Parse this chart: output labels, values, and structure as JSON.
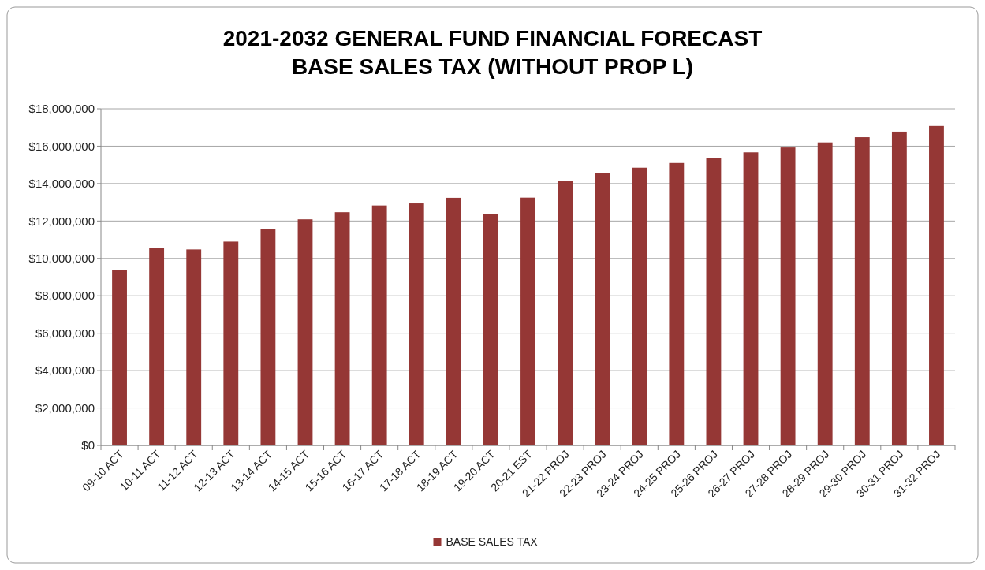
{
  "chart_data": {
    "type": "bar",
    "title": "2021-2032 GENERAL FUND FINANCIAL FORECAST\nBASE SALES TAX (WITHOUT PROP L)",
    "categories": [
      "09-10 ACT",
      "10-11 ACT",
      "11-12 ACT",
      "12-13 ACT",
      "13-14 ACT",
      "14-15 ACT",
      "15-16 ACT",
      "16-17 ACT",
      "17-18 ACT",
      "18-19 ACT",
      "19-20 ACT",
      "20-21 EST",
      "21-22 PROJ",
      "22-23 PROJ",
      "23-24 PROJ",
      "24-25 PROJ",
      "25-26 PROJ",
      "26-27 PROJ",
      "27-28 PROJ",
      "28-29 PROJ",
      "29-30 PROJ",
      "30-31 PROJ",
      "31-32 PROJ"
    ],
    "series": [
      {
        "name": "BASE SALES TAX",
        "color": "#953735",
        "values": [
          9380000,
          10560000,
          10480000,
          10900000,
          11560000,
          12090000,
          12470000,
          12830000,
          12940000,
          13240000,
          12360000,
          13250000,
          14130000,
          14580000,
          14850000,
          15100000,
          15370000,
          15670000,
          15930000,
          16200000,
          16480000,
          16780000,
          17080000
        ]
      }
    ],
    "ylim": [
      0,
      18000000
    ],
    "yticks": [
      {
        "value": 0,
        "label": "$0"
      },
      {
        "value": 2000000,
        "label": "$2,000,000"
      },
      {
        "value": 4000000,
        "label": "$4,000,000"
      },
      {
        "value": 6000000,
        "label": "$6,000,000"
      },
      {
        "value": 8000000,
        "label": "$8,000,000"
      },
      {
        "value": 10000000,
        "label": "$10,000,000"
      },
      {
        "value": 12000000,
        "label": "$12,000,000"
      },
      {
        "value": 14000000,
        "label": "$14,000,000"
      },
      {
        "value": 16000000,
        "label": "$16,000,000"
      },
      {
        "value": 18000000,
        "label": "$18,000,000"
      }
    ],
    "grid": "y",
    "legend": "bottom"
  }
}
